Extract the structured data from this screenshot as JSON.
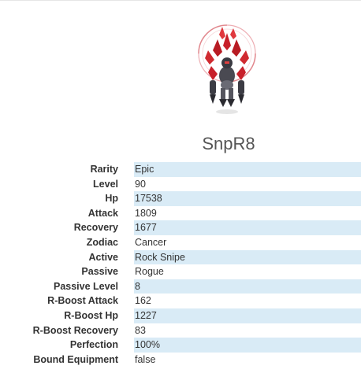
{
  "monster": {
    "name": "SnpR8",
    "stats": [
      {
        "label": "Rarity",
        "value": "Epic"
      },
      {
        "label": "Level",
        "value": "90"
      },
      {
        "label": "Hp",
        "value": "17538"
      },
      {
        "label": "Attack",
        "value": "1809"
      },
      {
        "label": "Recovery",
        "value": "1677"
      },
      {
        "label": "Zodiac",
        "value": "Cancer"
      },
      {
        "label": "Active",
        "value": "Rock Snipe"
      },
      {
        "label": "Passive",
        "value": "Rogue"
      },
      {
        "label": "Passive Level",
        "value": "8"
      },
      {
        "label": "R-Boost Attack",
        "value": "162"
      },
      {
        "label": "R-Boost Hp",
        "value": "1227"
      },
      {
        "label": "R-Boost Recovery",
        "value": "83"
      },
      {
        "label": "Perfection",
        "value": "100%"
      },
      {
        "label": "Bound Equipment",
        "value": "false"
      }
    ]
  },
  "colors": {
    "row_highlight": "#d9ebf6",
    "crystal_red": "#c8202a",
    "rune_circle": "#e89aa0"
  }
}
